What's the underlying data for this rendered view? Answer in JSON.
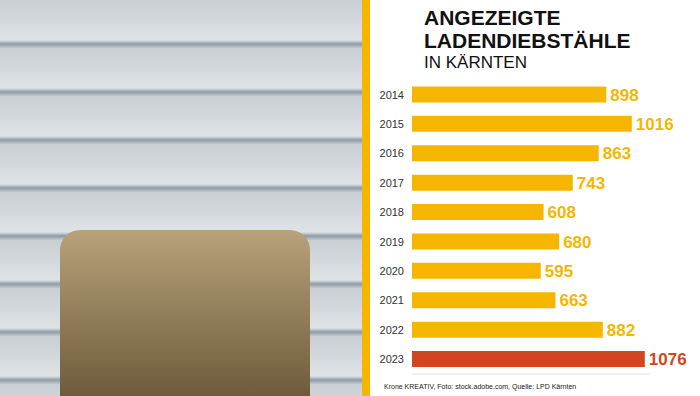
{
  "chart_data": {
    "type": "bar",
    "title": "ANGEZEIGTE LADENDIEBSTÄHLE",
    "subtitle": "IN KÄRNTEN",
    "categories": [
      "2014",
      "2015",
      "2016",
      "2017",
      "2018",
      "2019",
      "2020",
      "2021",
      "2022",
      "2023"
    ],
    "values": [
      898,
      1016,
      863,
      743,
      608,
      680,
      595,
      663,
      882,
      1076
    ],
    "colors": [
      "#f6b600",
      "#f6b600",
      "#f6b600",
      "#f6b600",
      "#f6b600",
      "#f6b600",
      "#f6b600",
      "#f6b600",
      "#f6b600",
      "#d2451e"
    ],
    "orientation": "horizontal",
    "data_labels": true,
    "tick_labels": "y",
    "xlim": [
      0,
      1100
    ],
    "annotations": [
      "Krone KREATIV, Foto: stock.adobe.com, Quelle: LPD Kärnten"
    ]
  }
}
